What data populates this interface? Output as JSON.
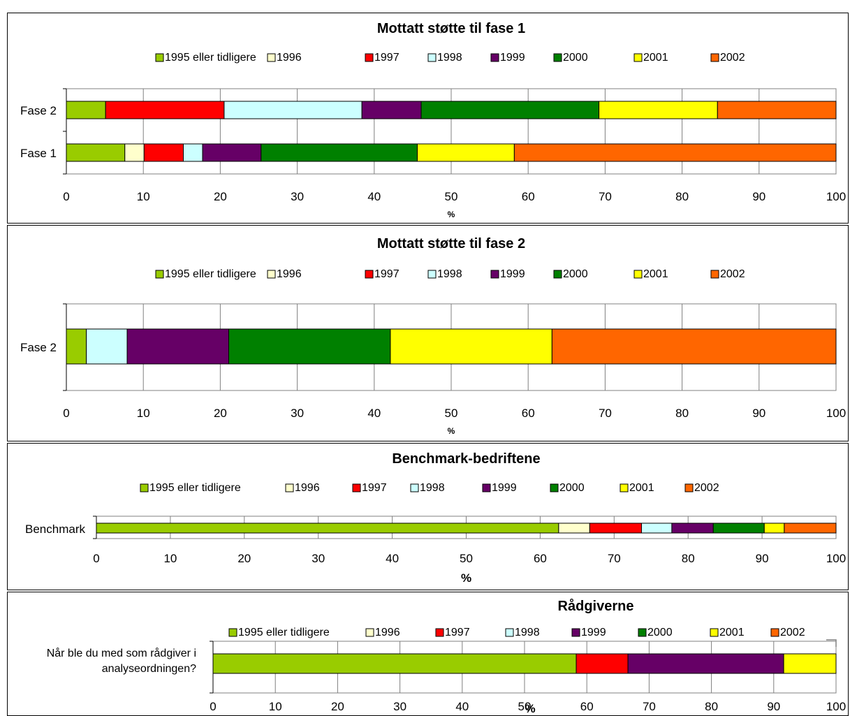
{
  "legend": [
    {
      "label": "1995 eller tidligere",
      "color": "#99CC00"
    },
    {
      "label": "1996",
      "color": "#FFFFCC"
    },
    {
      "label": "1997",
      "color": "#FF0000"
    },
    {
      "label": "1998",
      "color": "#CCFFFF"
    },
    {
      "label": "1999",
      "color": "#660066"
    },
    {
      "label": "2000",
      "color": "#008000"
    },
    {
      "label": "2001",
      "color": "#FFFF00"
    },
    {
      "label": "2002",
      "color": "#FF6600"
    }
  ],
  "chart_data": [
    {
      "type": "bar",
      "orientation": "horizontal",
      "stacked": true,
      "title": "Mottatt støtte til fase 1",
      "xlabel": "%",
      "xlim": [
        0,
        100
      ],
      "xticks": [
        "0",
        "10",
        "20",
        "30",
        "40",
        "50",
        "60",
        "70",
        "80",
        "90",
        "100"
      ],
      "legend_position": "top",
      "categories": [
        "Fase 2",
        "Fase 1"
      ],
      "rows": [
        {
          "label": "Fase 2",
          "values": [
            5.1,
            0,
            15.4,
            17.9,
            7.7,
            23.1,
            15.4,
            15.4
          ]
        },
        {
          "label": "Fase 1",
          "values": [
            7.6,
            2.5,
            5.1,
            2.5,
            7.6,
            20.3,
            12.6,
            41.8
          ]
        }
      ]
    },
    {
      "type": "bar",
      "orientation": "horizontal",
      "stacked": true,
      "title": "Mottatt støtte til fase 2",
      "xlabel": "%",
      "xlim": [
        0,
        100
      ],
      "xticks": [
        "0",
        "10",
        "20",
        "30",
        "40",
        "50",
        "60",
        "70",
        "80",
        "90",
        "100"
      ],
      "legend_position": "top",
      "categories": [
        "Fase 2"
      ],
      "rows": [
        {
          "label": "Fase 2",
          "values": [
            2.6,
            0,
            0,
            5.3,
            13.2,
            21.0,
            21.0,
            36.9
          ]
        }
      ]
    },
    {
      "type": "bar",
      "orientation": "horizontal",
      "stacked": true,
      "title": "Benchmark-bedriftene",
      "xlabel": "%",
      "xlim": [
        0,
        100
      ],
      "xticks": [
        "0",
        "10",
        "20",
        "30",
        "40",
        "50",
        "60",
        "70",
        "80",
        "90",
        "100"
      ],
      "legend_position": "top",
      "categories": [
        "Benchmark"
      ],
      "rows": [
        {
          "label": "Benchmark",
          "values": [
            62.5,
            4.2,
            7.0,
            4.1,
            5.6,
            6.9,
            2.7,
            7.0
          ]
        }
      ]
    },
    {
      "type": "bar",
      "orientation": "horizontal",
      "stacked": true,
      "title": "Rådgiverne",
      "xlabel": "%",
      "xlim": [
        0,
        100
      ],
      "xticks": [
        "0",
        "10",
        "20",
        "30",
        "40",
        "50",
        "60",
        "70",
        "80",
        "90",
        "100"
      ],
      "legend_position": "top",
      "categories": [
        "Når ble du med som rådgiver i analyseordningen?"
      ],
      "rows": [
        {
          "label_lines": [
            "Når ble du med som rådgiver i",
            "analyseordningen?"
          ],
          "values": [
            58.3,
            0,
            8.3,
            0,
            25.0,
            0,
            8.4,
            0
          ]
        }
      ]
    }
  ]
}
